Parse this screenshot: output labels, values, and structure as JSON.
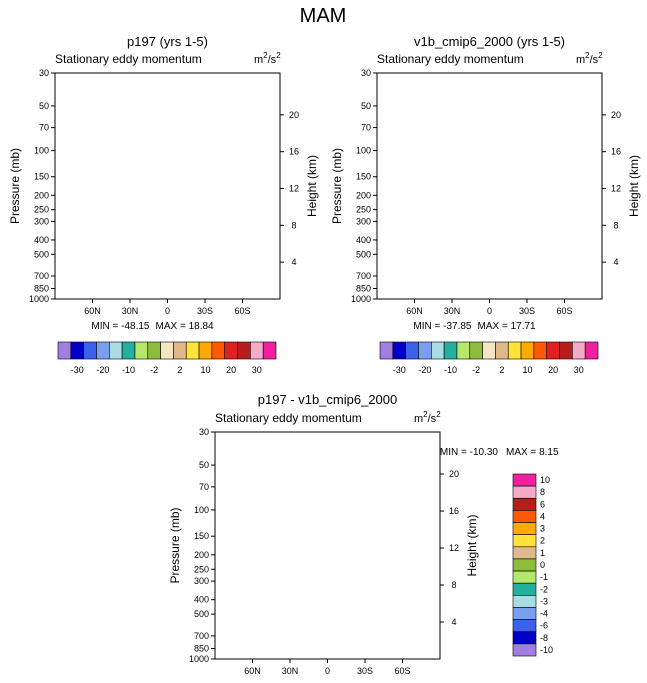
{
  "figure_title": "MAM",
  "palette": [
    "#9f7fdf",
    "#0000c8",
    "#3b62e8",
    "#7a9ff0",
    "#a9dce3",
    "#24b09c",
    "#b3e86b",
    "#8dbd3a",
    "#f5e6c3",
    "#e0b98a",
    "#ffe33a",
    "#ffaa00",
    "#ff5a00",
    "#e02020",
    "#b81d1d",
    "#f5aac8",
    "#f020a0"
  ],
  "chart_data": [
    {
      "id": "p197",
      "type": "contour",
      "title": "p197 (yrs 1-5)",
      "subtitle": "Stationary eddy momentum",
      "units_base": "m",
      "units_exp": "2",
      "units_tail": "/s",
      "units_exp2": "2",
      "xlabel": "",
      "ylabel": "Pressure (mb)",
      "ylabel_right": "Height (km)",
      "x_ticks": [
        "60N",
        "30N",
        "0",
        "30S",
        "60S"
      ],
      "x_tick_values": [
        60,
        30,
        0,
        -30,
        -60
      ],
      "xlim": [
        90,
        -90
      ],
      "y_ticks": [
        "30",
        "50",
        "70",
        "100",
        "150",
        "200",
        "250",
        "300",
        "400",
        "500",
        "700",
        "850",
        "1000"
      ],
      "y_tick_values": [
        30,
        50,
        70,
        100,
        150,
        200,
        250,
        300,
        400,
        500,
        700,
        850,
        1000
      ],
      "ylim": [
        1000,
        30
      ],
      "height_ticks": [
        "20",
        "16",
        "12",
        "8",
        "4"
      ],
      "height_tick_values": [
        20,
        16,
        12,
        8,
        4
      ],
      "min_label": "MIN = -48.15",
      "max_label": "MAX =  18.84",
      "min": -48.15,
      "max": 18.84,
      "legend_orientation": "horizontal",
      "legend_labels": [
        "-30",
        "-20",
        "-10",
        "-2",
        "2",
        "10",
        "20",
        "30"
      ],
      "levels": [
        -30,
        -25,
        -20,
        -15,
        -10,
        -5,
        -2,
        0,
        2,
        5,
        10,
        15,
        20,
        25,
        30
      ]
    },
    {
      "id": "v1b",
      "type": "contour",
      "title": "v1b_cmip6_2000 (yrs 1-5)",
      "subtitle": "Stationary eddy momentum",
      "units_base": "m",
      "units_exp": "2",
      "units_tail": "/s",
      "units_exp2": "2",
      "xlabel": "",
      "ylabel": "Pressure (mb)",
      "ylabel_right": "Height (km)",
      "x_ticks": [
        "60N",
        "30N",
        "0",
        "30S",
        "60S"
      ],
      "x_tick_values": [
        60,
        30,
        0,
        -30,
        -60
      ],
      "xlim": [
        90,
        -90
      ],
      "y_ticks": [
        "30",
        "50",
        "70",
        "100",
        "150",
        "200",
        "250",
        "300",
        "400",
        "500",
        "700",
        "850",
        "1000"
      ],
      "y_tick_values": [
        30,
        50,
        70,
        100,
        150,
        200,
        250,
        300,
        400,
        500,
        700,
        850,
        1000
      ],
      "ylim": [
        1000,
        30
      ],
      "height_ticks": [
        "20",
        "16",
        "12",
        "8",
        "4"
      ],
      "height_tick_values": [
        20,
        16,
        12,
        8,
        4
      ],
      "min_label": "MIN = -37.85",
      "max_label": "MAX =  17.71",
      "min": -37.85,
      "max": 17.71,
      "legend_orientation": "horizontal",
      "legend_labels": [
        "-30",
        "-20",
        "-10",
        "-2",
        "2",
        "10",
        "20",
        "30"
      ],
      "levels": [
        -30,
        -25,
        -20,
        -15,
        -10,
        -5,
        -2,
        0,
        2,
        5,
        10,
        15,
        20,
        25,
        30
      ]
    },
    {
      "id": "diff",
      "type": "contour",
      "title": "p197 - v1b_cmip6_2000",
      "subtitle": "Stationary eddy momentum",
      "units_base": "m",
      "units_exp": "2",
      "units_tail": "/s",
      "units_exp2": "2",
      "xlabel": "",
      "ylabel": "Pressure (mb)",
      "ylabel_right": "Height (km)",
      "x_ticks": [
        "60N",
        "30N",
        "0",
        "30S",
        "60S"
      ],
      "x_tick_values": [
        60,
        30,
        0,
        -30,
        -60
      ],
      "xlim": [
        90,
        -90
      ],
      "y_ticks": [
        "30",
        "50",
        "70",
        "100",
        "150",
        "200",
        "250",
        "300",
        "400",
        "500",
        "700",
        "850",
        "1000"
      ],
      "y_tick_values": [
        30,
        50,
        70,
        100,
        150,
        200,
        250,
        300,
        400,
        500,
        700,
        850,
        1000
      ],
      "ylim": [
        1000,
        30
      ],
      "height_ticks": [
        "20",
        "16",
        "12",
        "8",
        "4"
      ],
      "height_tick_values": [
        20,
        16,
        12,
        8,
        4
      ],
      "min_label": "MIN = -10.30",
      "max_label": "MAX =   8.15",
      "min": -10.3,
      "max": 8.15,
      "legend_orientation": "vertical",
      "legend_labels": [
        "-10",
        "-8",
        "-6",
        "-4",
        "-3",
        "-2",
        "-1",
        "0",
        "1",
        "2",
        "3",
        "4",
        "6",
        "8",
        "10"
      ],
      "levels": [
        -10,
        -8,
        -6,
        -4,
        -3,
        -2,
        -1,
        0,
        1,
        2,
        3,
        4,
        6,
        8,
        10
      ]
    }
  ]
}
